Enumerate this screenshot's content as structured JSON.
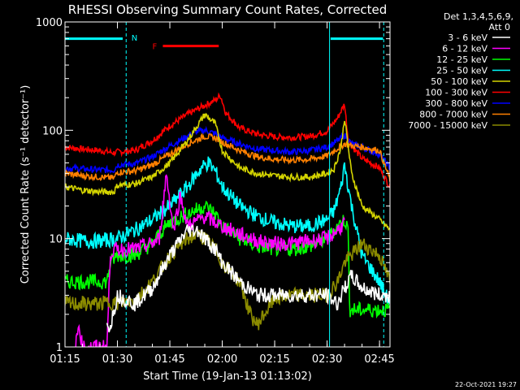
{
  "chart_data": {
    "type": "line",
    "title": "RHESSI Observing Summary Count Rates, Corrected",
    "xlabel": "Start Time (19-Jan-13 01:13:02)",
    "ylabel": "Corrected Count Rate (s⁻¹ detector⁻¹)",
    "x_unit": "minutes after 01:00 UT",
    "xlim": [
      75,
      168
    ],
    "x_ticks": [
      {
        "value": 75,
        "label": "01:15"
      },
      {
        "value": 90,
        "label": "01:30"
      },
      {
        "value": 105,
        "label": "01:45"
      },
      {
        "value": 120,
        "label": "02:00"
      },
      {
        "value": 135,
        "label": "02:15"
      },
      {
        "value": 150,
        "label": "02:30"
      },
      {
        "value": 165,
        "label": "02:45"
      }
    ],
    "ylim": [
      1,
      1000
    ],
    "y_scale": "log",
    "y_ticks": [
      {
        "value": 1,
        "label": "1"
      },
      {
        "value": 10,
        "label": "10"
      },
      {
        "value": 100,
        "label": "100"
      },
      {
        "value": 1000,
        "label": "1000"
      }
    ],
    "legend": {
      "position": "right",
      "header": [
        "Det 1,3,4,5,6,9,",
        "Att 0"
      ],
      "entries": [
        {
          "label": "3 - 6 keV",
          "color": "#ffffff"
        },
        {
          "label": "6 - 12 keV",
          "color": "#ff00ff"
        },
        {
          "label": "12 - 25 keV",
          "color": "#00ff00"
        },
        {
          "label": "25 - 50 keV",
          "color": "#00ffff"
        },
        {
          "label": "50 - 100 keV",
          "color": "#d4d400"
        },
        {
          "label": "100 - 300 keV",
          "color": "#ff0000"
        },
        {
          "label": "300 - 800 keV",
          "color": "#0000ff"
        },
        {
          "label": "800 - 7000 keV",
          "color": "#ff8000"
        },
        {
          "label": "7000 - 15000 keV",
          "color": "#8b8b00"
        }
      ]
    },
    "series": [
      {
        "color": "#ff0000",
        "x": [
          75,
          80,
          85,
          89,
          90,
          95,
          100,
          105,
          110,
          115,
          118,
          119.5,
          121,
          125,
          130,
          135,
          140,
          145,
          150,
          153,
          155,
          156,
          157,
          160,
          165,
          168
        ],
        "y": [
          70,
          67,
          65,
          62,
          63,
          65,
          80,
          110,
          140,
          170,
          190,
          210,
          145,
          105,
          92,
          87,
          86,
          88,
          98,
          130,
          175,
          85,
          72,
          55,
          45,
          30
        ]
      },
      {
        "color": "#0000ff",
        "x": [
          75,
          80,
          85,
          89,
          90,
          95,
          100,
          105,
          110,
          112,
          115,
          118,
          120,
          125,
          130,
          135,
          140,
          145,
          150,
          153,
          155,
          157,
          160,
          165,
          168
        ],
        "y": [
          45,
          44,
          43,
          43,
          48,
          49,
          57,
          72,
          88,
          96,
          100,
          93,
          85,
          75,
          67,
          65,
          63,
          65,
          70,
          80,
          90,
          75,
          70,
          60,
          45
        ]
      },
      {
        "color": "#ff8000",
        "x": [
          75,
          80,
          85,
          89,
          90,
          95,
          100,
          105,
          110,
          115,
          118,
          120,
          125,
          130,
          135,
          140,
          145,
          150,
          153,
          155,
          157,
          160,
          165,
          168
        ],
        "y": [
          40,
          38,
          37,
          36,
          41,
          42,
          48,
          60,
          75,
          88,
          85,
          78,
          65,
          57,
          54,
          53,
          54,
          58,
          68,
          75,
          72,
          70,
          65,
          35
        ]
      },
      {
        "color": "#d4d400",
        "x": [
          75,
          80,
          85,
          89,
          90,
          95,
          100,
          105,
          110,
          115,
          118,
          120,
          125,
          130,
          135,
          140,
          145,
          150,
          152,
          154,
          155,
          157,
          160,
          165,
          168
        ],
        "y": [
          30,
          28,
          27,
          27,
          31,
          32,
          37,
          50,
          80,
          140,
          115,
          65,
          45,
          40,
          38,
          37,
          37,
          40,
          44,
          70,
          130,
          40,
          20,
          15,
          12
        ]
      },
      {
        "color": "#00ffff",
        "x": [
          75,
          80,
          85,
          90,
          95,
          100,
          105,
          110,
          114,
          116,
          118,
          120,
          125,
          130,
          135,
          140,
          145,
          150,
          152,
          154,
          155,
          157,
          160,
          165,
          168
        ],
        "y": [
          10,
          9.5,
          9.5,
          10,
          12,
          15,
          20,
          30,
          45,
          50,
          42,
          30,
          20,
          16,
          14,
          13,
          13,
          15,
          18,
          30,
          48,
          20,
          7,
          4,
          2.5
        ]
      },
      {
        "color": "#00ff00",
        "x": [
          75,
          80,
          85,
          87,
          88,
          90,
          95,
          100,
          103,
          105,
          110,
          115,
          118,
          120,
          125,
          130,
          135,
          140,
          145,
          150,
          153,
          155,
          156,
          156.5,
          160,
          165,
          168
        ],
        "y": [
          4,
          4,
          4,
          4,
          6,
          7,
          7,
          9,
          12,
          14,
          17,
          20,
          17,
          13,
          10,
          8.5,
          8,
          8,
          8.5,
          10,
          13,
          15,
          12,
          2.2,
          2.2,
          2.2,
          2.2
        ]
      },
      {
        "color": "#ff00ff",
        "x": [
          78,
          79,
          80,
          82,
          85,
          87,
          88,
          90,
          95,
          100,
          102,
          104,
          106,
          108,
          110,
          115,
          120,
          125,
          130,
          135,
          140,
          145,
          150,
          153,
          155
        ],
        "y": [
          1,
          1.6,
          1,
          1,
          1,
          1,
          7.5,
          8,
          8,
          9,
          10,
          40,
          12,
          25,
          13,
          16,
          13,
          11,
          9.5,
          9,
          9,
          9.5,
          10,
          12,
          14
        ]
      },
      {
        "color": "#8b8b00",
        "x": [
          75,
          80,
          85,
          88,
          90,
          95,
          100,
          105,
          110,
          113,
          115,
          118,
          120,
          125,
          128,
          130,
          132,
          135,
          140,
          145,
          150,
          153,
          155,
          160,
          165,
          168
        ],
        "y": [
          2.5,
          2.5,
          2.5,
          2.6,
          2.5,
          2.7,
          4,
          7,
          10,
          11,
          10,
          8,
          6,
          4,
          2,
          1.6,
          2,
          2.8,
          3,
          3,
          3,
          4,
          6,
          9,
          7,
          4
        ]
      },
      {
        "color": "#ffffff",
        "x": [
          87,
          88,
          90,
          95,
          100,
          105,
          110,
          113,
          115,
          118,
          120,
          125,
          130,
          135,
          140,
          145,
          150,
          153,
          155,
          157,
          160,
          165,
          168
        ],
        "y": [
          1.5,
          1.6,
          3,
          2.5,
          3.5,
          7,
          12,
          12,
          10,
          8,
          6,
          4,
          3,
          3,
          3,
          3,
          3,
          2.5,
          3.5,
          4.5,
          3.5,
          3,
          3
        ]
      }
    ],
    "annotations": [
      {
        "type": "vline",
        "x": 92.5,
        "color": "#00ffff",
        "dashed": true
      },
      {
        "type": "vline",
        "x": 150.7,
        "color": "#00ffff",
        "dashed": false
      },
      {
        "type": "vline",
        "x": 166.2,
        "color": "#00ffff",
        "dashed": true
      },
      {
        "type": "hbar",
        "x_start": 75,
        "x_end": 91.5,
        "y": 700,
        "color": "#00ffff"
      },
      {
        "type": "hbar",
        "x_start": 151,
        "x_end": 166,
        "y": 700,
        "color": "#00ffff"
      },
      {
        "type": "text",
        "text": "N",
        "x": 94,
        "y": 720,
        "color": "#00ffff"
      },
      {
        "type": "text",
        "text": "F",
        "x": 100,
        "y": 600,
        "color": "#ff0000"
      },
      {
        "type": "hbar",
        "x_start": 103,
        "x_end": 119,
        "y": 600,
        "color": "#ff0000"
      }
    ]
  },
  "footer": {
    "timestamp": "22-Oct-2021 19:27"
  }
}
